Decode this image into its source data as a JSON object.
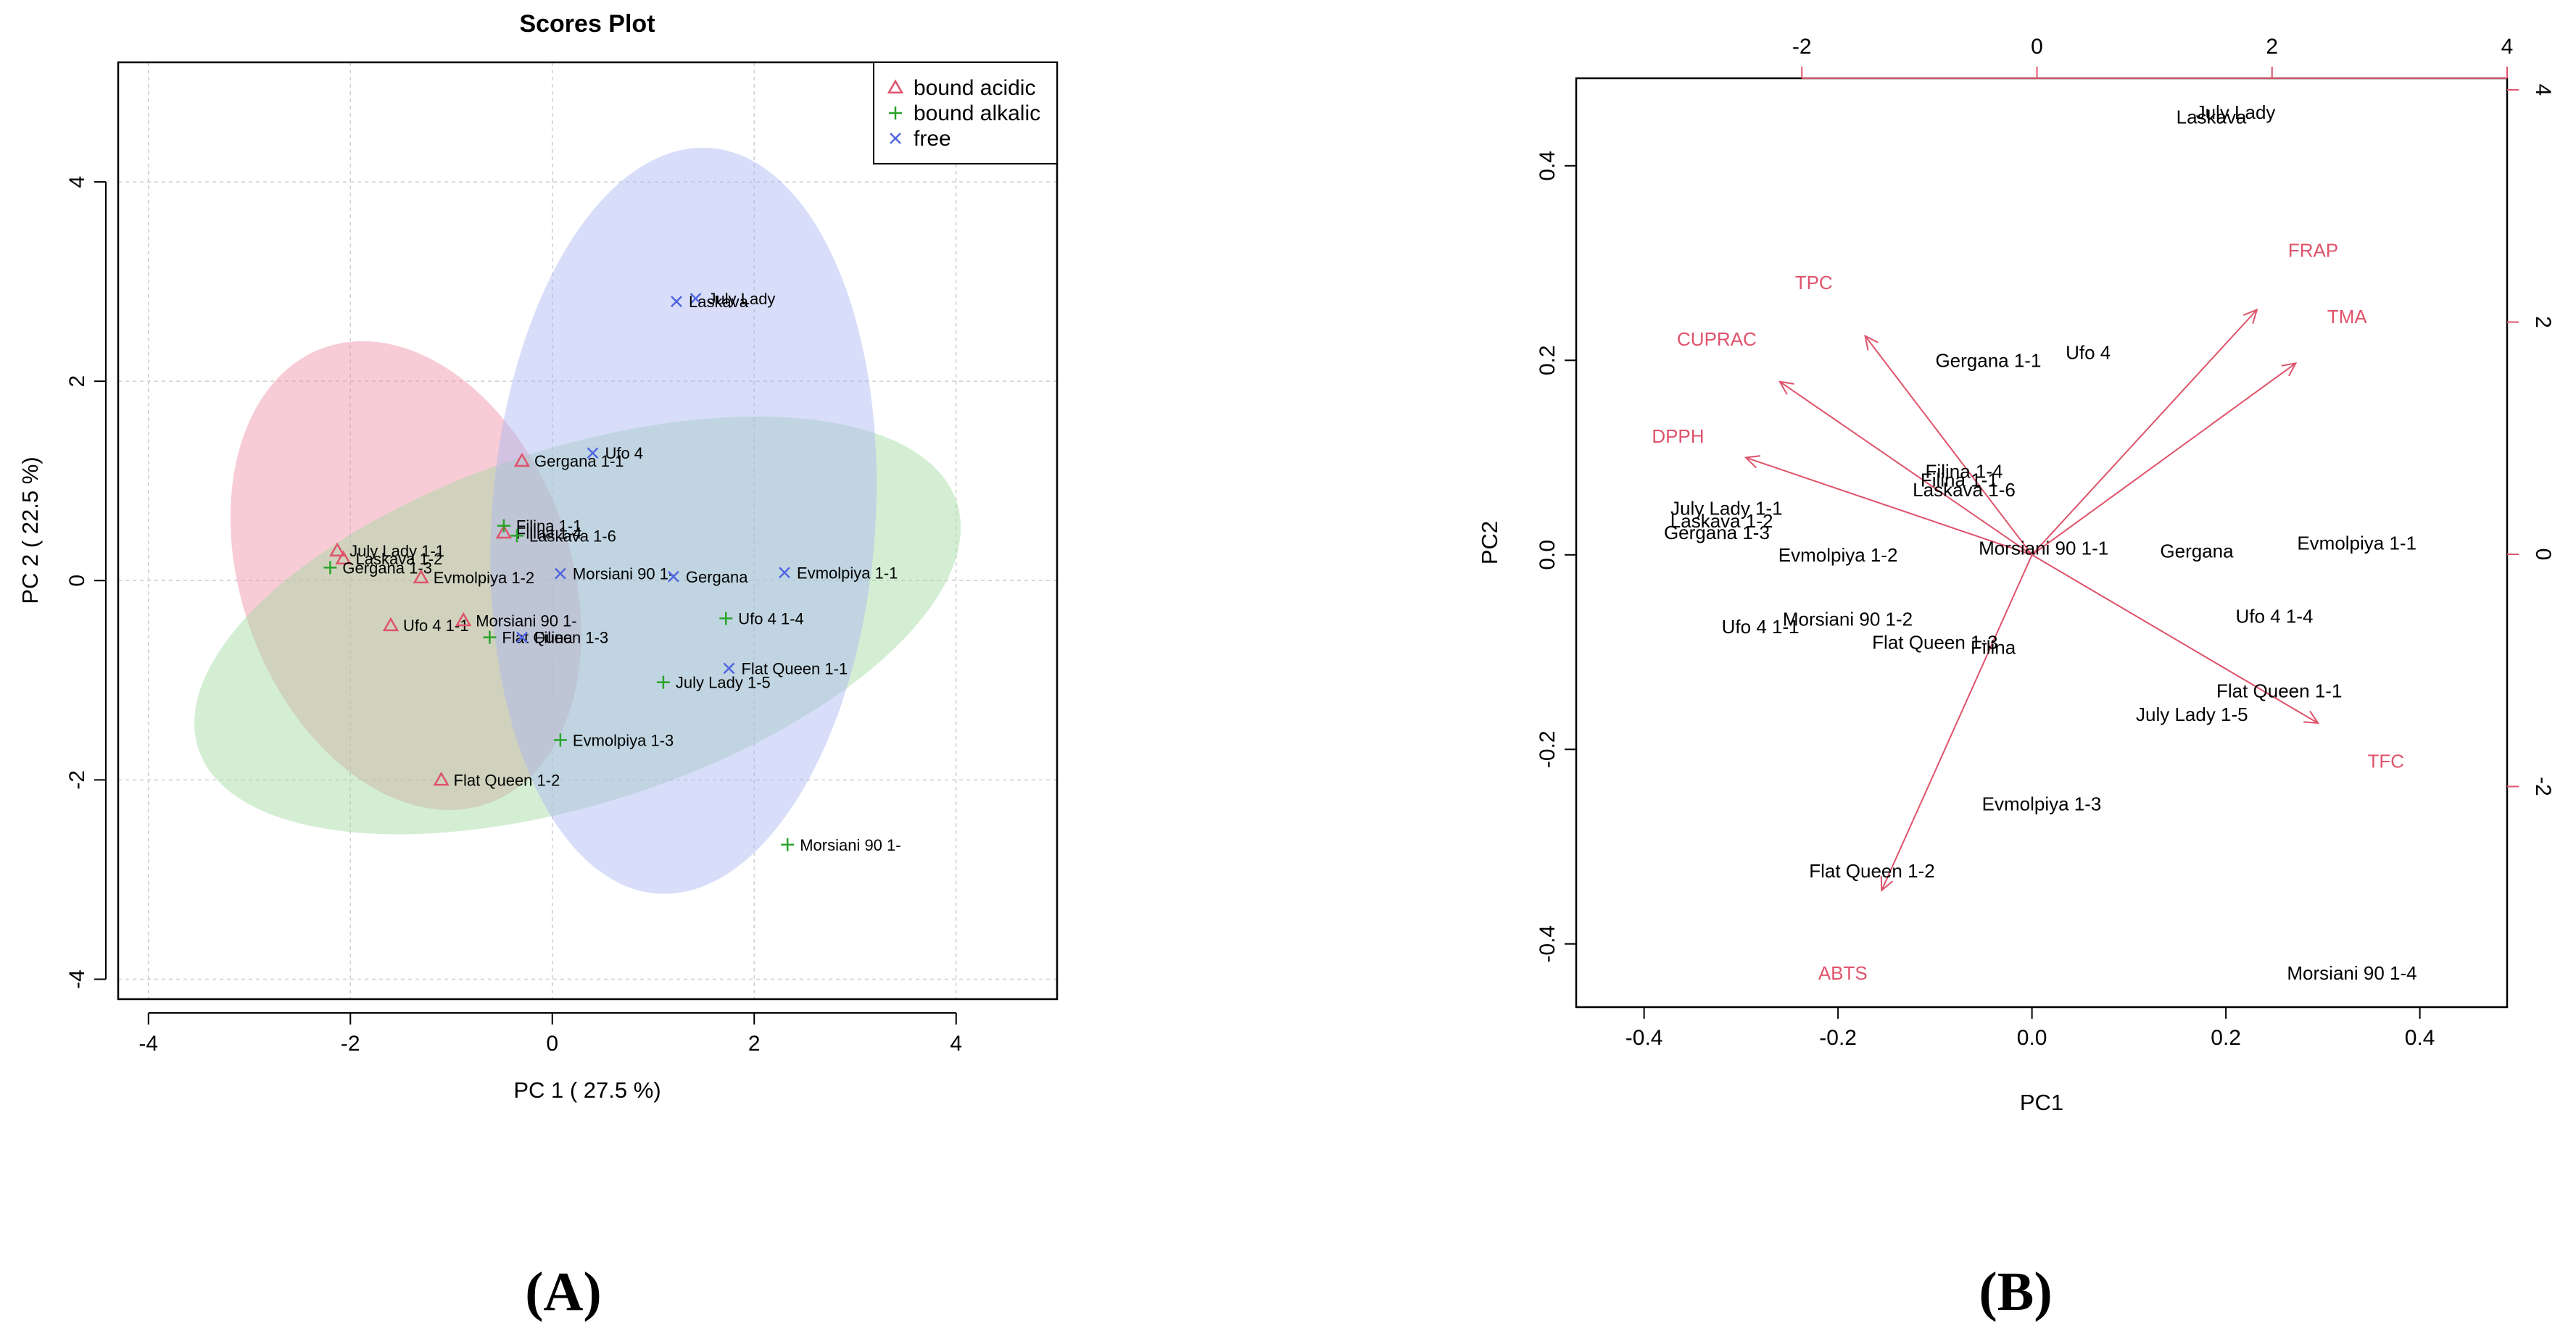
{
  "chart_data": [
    {
      "panel_label": "(A)",
      "type": "scatter",
      "title": "Scores Plot",
      "xlabel": "PC 1 ( 27.5 %)",
      "ylabel": "PC 2 ( 22.5 %)",
      "xlim": [
        -4.3,
        5
      ],
      "ylim": [
        -4.2,
        5.2
      ],
      "xticks": [
        -4,
        -2,
        0,
        2,
        4
      ],
      "yticks": [
        -4,
        -2,
        0,
        2,
        4
      ],
      "xtick_labels": [
        "-4",
        "-2",
        "0",
        "2",
        "4"
      ],
      "ytick_labels": [
        "-4",
        "-2",
        "0",
        "2",
        "4"
      ],
      "grid": true,
      "legend_position": "top-right",
      "series": [
        {
          "name": "bound acidic",
          "marker": "triangle",
          "color": "#df536b",
          "ellipse_color": "#ee8fa5",
          "ellipse": {
            "cx": -1.45,
            "cy": 0.05,
            "rx": 1.63,
            "ry": 2.43,
            "angle": -20
          },
          "points": [
            {
              "label": "July Lady 1-1",
              "x": -2.13,
              "y": 0.3
            },
            {
              "label": "Laskava 1-2",
              "x": -2.07,
              "y": 0.22
            },
            {
              "label": "Gergana 1-1",
              "x": -0.3,
              "y": 1.2
            },
            {
              "label": "Evmolpiya 1-2",
              "x": -1.3,
              "y": 0.03
            },
            {
              "label": "Filina 1-4",
              "x": -0.48,
              "y": 0.48
            },
            {
              "label": "Ufo 4 1-1",
              "x": -1.6,
              "y": -0.45
            },
            {
              "label": "Morsiani 90 1-",
              "x": -0.88,
              "y": -0.4
            },
            {
              "label": "Flat Queen 1-2",
              "x": -1.1,
              "y": -2.0
            }
          ]
        },
        {
          "name": "bound alkalic",
          "marker": "plus",
          "color": "#2aa42a",
          "ellipse_color": "#9fd99f",
          "ellipse": {
            "cx": 0.25,
            "cy": -0.45,
            "rx": 3.95,
            "ry": 1.78,
            "angle": -18
          },
          "points": [
            {
              "label": "Gergana 1-3",
              "x": -2.2,
              "y": 0.13
            },
            {
              "label": "Filina 1-1",
              "x": -0.48,
              "y": 0.55
            },
            {
              "label": "Laskava 1-6",
              "x": -0.35,
              "y": 0.45
            },
            {
              "label": "Flat Queen 1-3",
              "x": -0.62,
              "y": -0.57
            },
            {
              "label": "Ufo 4 1-4",
              "x": 1.72,
              "y": -0.38
            },
            {
              "label": "July Lady 1-5",
              "x": 1.1,
              "y": -1.02
            },
            {
              "label": "Evmolpiya 1-3",
              "x": 0.08,
              "y": -1.6
            },
            {
              "label": "Morsiani 90 1-",
              "x": 2.33,
              "y": -2.65
            }
          ]
        },
        {
          "name": "free",
          "marker": "x",
          "color": "#5066e0",
          "ellipse_color": "#a9b5f2",
          "ellipse": {
            "cx": 1.3,
            "cy": 0.6,
            "rx": 1.9,
            "ry": 3.75,
            "angle": 4
          },
          "points": [
            {
              "label": "July Lady",
              "x": 1.42,
              "y": 2.83
            },
            {
              "label": "Laskava",
              "x": 1.23,
              "y": 2.8
            },
            {
              "label": "Ufo 4",
              "x": 0.4,
              "y": 1.28
            },
            {
              "label": "Morsiani 90 1-",
              "x": 0.08,
              "y": 0.07
            },
            {
              "label": "Gergana",
              "x": 1.2,
              "y": 0.04
            },
            {
              "label": "Evmolpiya 1-1",
              "x": 2.3,
              "y": 0.08
            },
            {
              "label": "Flat Queen 1-1",
              "x": 1.75,
              "y": -0.88
            },
            {
              "label": "Filina",
              "x": -0.3,
              "y": -0.57
            }
          ]
        }
      ]
    },
    {
      "panel_label": "(B)",
      "type": "scatter",
      "subtype": "biplot",
      "xlabel": "PC1",
      "ylabel": "PC2",
      "xlim": [
        -0.47,
        0.49
      ],
      "ylim": [
        -0.465,
        0.49
      ],
      "xticks": [
        -0.4,
        -0.2,
        0.0,
        0.2,
        0.4
      ],
      "yticks": [
        -0.4,
        -0.2,
        0.0,
        0.2,
        0.4
      ],
      "xtick_labels": [
        "-0.4",
        "-0.2",
        "0.0",
        "0.2",
        "0.4"
      ],
      "ytick_labels": [
        "-0.4",
        "-0.2",
        "0.0",
        "0.2",
        "0.4"
      ],
      "top_axis": {
        "range": [
          -3.92,
          4.0
        ],
        "ticks": [
          -2,
          0,
          2,
          4
        ],
        "tick_labels": [
          "-2",
          "0",
          "2",
          "4"
        ]
      },
      "right_axis": {
        "range": [
          -3.9,
          4.1
        ],
        "ticks": [
          -2,
          0,
          2,
          4
        ],
        "tick_labels": [
          "-2",
          "0",
          "2",
          "4"
        ]
      },
      "observations": [
        {
          "label": "July Lady",
          "x": 0.21,
          "y": 0.455
        },
        {
          "label": "Laskava",
          "x": 0.185,
          "y": 0.45
        },
        {
          "label": "Gergana 1-1",
          "x": -0.045,
          "y": 0.2
        },
        {
          "label": "Ufo 4",
          "x": 0.058,
          "y": 0.208
        },
        {
          "label": "Filina 1-4",
          "x": -0.07,
          "y": 0.086
        },
        {
          "label": "Filina 1-1",
          "x": -0.075,
          "y": 0.077
        },
        {
          "label": "Laskava 1-6",
          "x": -0.07,
          "y": 0.067
        },
        {
          "label": "July Lady 1-1",
          "x": -0.315,
          "y": 0.048
        },
        {
          "label": "Laskava 1-2",
          "x": -0.32,
          "y": 0.035
        },
        {
          "label": "Gergana 1-3",
          "x": -0.325,
          "y": 0.023
        },
        {
          "label": "Evmolpiya 1-2",
          "x": -0.2,
          "y": 0.0
        },
        {
          "label": "Morsiani 90 1-1",
          "x": 0.012,
          "y": 0.007
        },
        {
          "label": "Gergana",
          "x": 0.17,
          "y": 0.004
        },
        {
          "label": "Evmolpiya 1-1",
          "x": 0.335,
          "y": 0.012
        },
        {
          "label": "Ufo 4 1-4",
          "x": 0.25,
          "y": -0.063
        },
        {
          "label": "Morsiani 90 1-2",
          "x": -0.19,
          "y": -0.066
        },
        {
          "label": "Ufo 4 1-1",
          "x": -0.28,
          "y": -0.074
        },
        {
          "label": "Flat Queen 1-3",
          "x": -0.1,
          "y": -0.09
        },
        {
          "label": "Filina",
          "x": -0.04,
          "y": -0.095
        },
        {
          "label": "Flat Queen 1-1",
          "x": 0.255,
          "y": -0.14
        },
        {
          "label": "July Lady 1-5",
          "x": 0.165,
          "y": -0.164
        },
        {
          "label": "Evmolpiya 1-3",
          "x": 0.01,
          "y": -0.256
        },
        {
          "label": "Flat Queen 1-2",
          "x": -0.165,
          "y": -0.325
        },
        {
          "label": "Morsiani 90 1-4",
          "x": 0.33,
          "y": -0.43
        }
      ],
      "loadings": [
        {
          "label": "TPC",
          "x": -0.172,
          "y": 0.225,
          "label_x": -0.225,
          "label_y": 0.28
        },
        {
          "label": "CUPRAC",
          "x": -0.26,
          "y": 0.178,
          "label_x": -0.325,
          "label_y": 0.222
        },
        {
          "label": "DPPH",
          "x": -0.295,
          "y": 0.1,
          "label_x": -0.365,
          "label_y": 0.122
        },
        {
          "label": "FRAP",
          "x": 0.232,
          "y": 0.252,
          "label_x": 0.29,
          "label_y": 0.313
        },
        {
          "label": "TMA",
          "x": 0.272,
          "y": 0.197,
          "label_x": 0.325,
          "label_y": 0.245
        },
        {
          "label": "TFC",
          "x": 0.295,
          "y": -0.173,
          "label_x": 0.365,
          "label_y": -0.212
        },
        {
          "label": "ABTS",
          "x": -0.155,
          "y": -0.345,
          "label_x": -0.195,
          "label_y": -0.43
        }
      ],
      "arrow_color": "#df536b"
    }
  ]
}
